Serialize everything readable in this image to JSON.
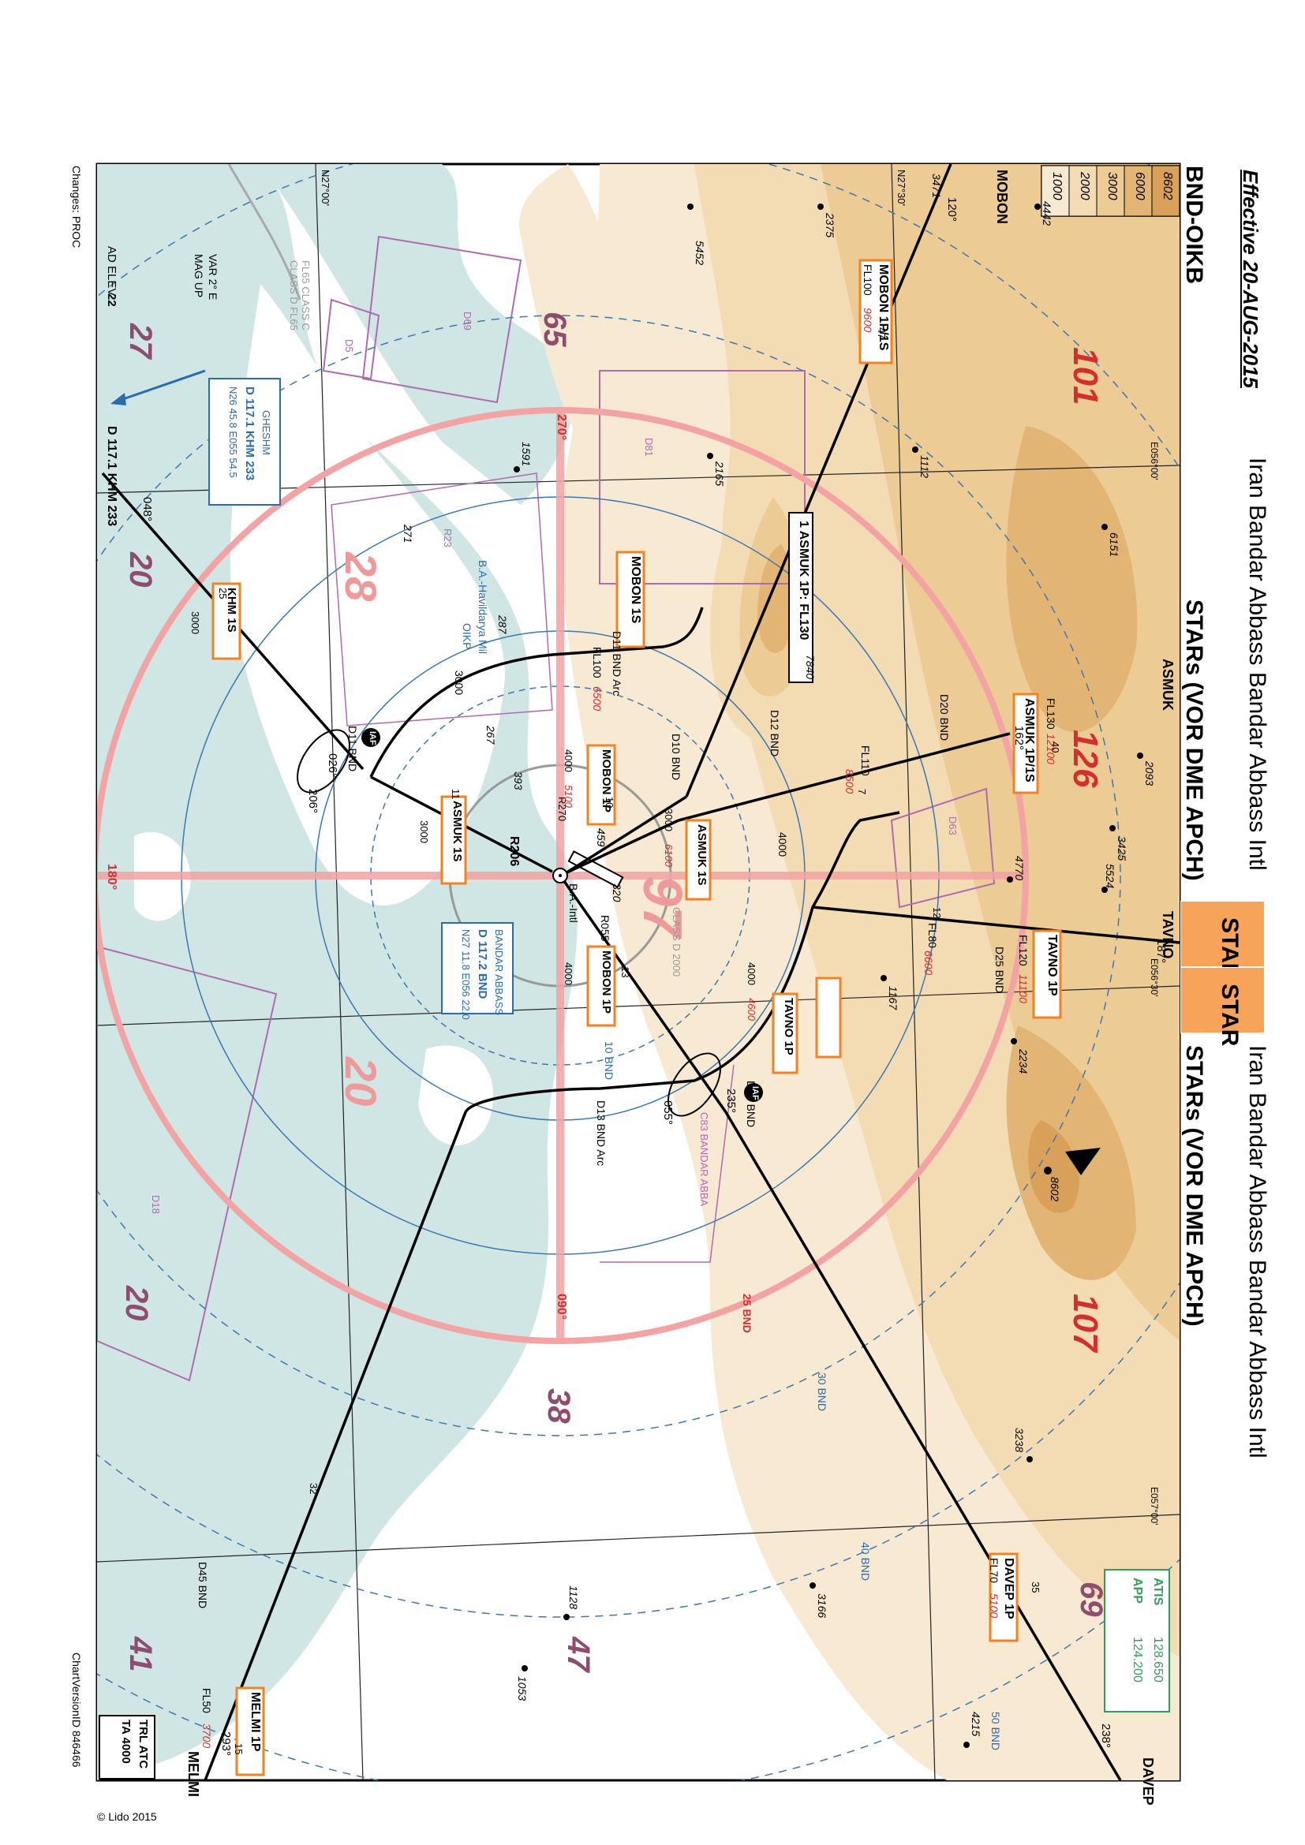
{
  "header": {
    "effective": "Effective 20-AUG-2015",
    "title_left": "Iran Bandar Abbass Bandar Abbass Intl",
    "title_right": "Iran Bandar Abbass Bandar Abbass Intl",
    "subtitle_left": "STARs (VOR DME APCH)",
    "subtitle_right": "STARs (VOR DME APCH)",
    "icao": "BND-OIKB",
    "star_tag_1": "STAR",
    "star_tag_2": "STAR"
  },
  "footer": {
    "changes": "Changes: PROC",
    "chart_version": "ChartVersionID 846466",
    "copyright": "© Lido 2015"
  },
  "legend": {
    "elevation_bands": [
      "8602",
      "6000",
      "3000",
      "2000",
      "1000"
    ],
    "colors": {
      "8602": "#d9a05a",
      "6000": "#e3b574",
      "3000": "#eccb94",
      "2000": "#f3dcb4",
      "1000": "#f8ead2"
    }
  },
  "comm": {
    "atis_label": "ATIS",
    "atis_freq": "128.650",
    "app_label": "APP",
    "app_freq": "124.200"
  },
  "transition": {
    "line1": "TRL ATC",
    "line2": "TA 4000"
  },
  "airport": {
    "elevation_label": "AD ELEV",
    "elevation_value": "22",
    "var_label": "VAR 2° E",
    "mag_up": "MAG UP",
    "name": "B.A.-Intl",
    "mil_name": "B.A.-Havildarya Mil",
    "mil_icao": "OIKP"
  },
  "navaids": {
    "vor_bnd": {
      "name": "BANDAR ABBASS",
      "freq_id": "D 117.2 BND",
      "coords": "N27 11.8 E056 22.0"
    },
    "vor_khm": {
      "name": "GHESHM",
      "freq_id": "D 117.1 KHM 233",
      "coords": "N26 45.8 E055 54.5",
      "edge_label": "D 117.1 KHM 233"
    }
  },
  "msa": [
    "101",
    "126",
    "107",
    "69",
    "47",
    "41",
    "20",
    "27",
    "65",
    "28",
    "97",
    "20",
    "38",
    "20"
  ],
  "spot_elevations": [
    "4442",
    "6151",
    "8602",
    "3238",
    "4215",
    "3166",
    "1128",
    "1053",
    "2093",
    "3425",
    "5524",
    "4770",
    "1167",
    "2234",
    "7840",
    "1112",
    "2165",
    "1591",
    "5452",
    "2375",
    "3471",
    "287",
    "271",
    "267",
    "393",
    "459",
    "320"
  ],
  "radials": [
    "270°",
    "090°",
    "180°",
    "R270",
    "R206",
    "R055"
  ],
  "rings": [
    "10 BND",
    "25 BND",
    "30 BND",
    "40 BND",
    "50 BND"
  ],
  "graticule": [
    "N27°00'",
    "N27°30'",
    "E056°00'",
    "E056°30'",
    "E057°00'"
  ],
  "airspace": [
    "D81",
    "D69",
    "D5",
    "D63",
    "D18",
    "R23",
    "C83 BANDAR ABBA",
    "CLASS D 2000",
    "FL65 CLASS C",
    "CLASS D FL65"
  ],
  "fixes": [
    "MOBON",
    "ASMUK",
    "TAVNO",
    "DAVEP",
    "MELMI"
  ],
  "procedures": [
    {
      "name": "MOBON 1P/1S",
      "detail": "FL100",
      "alt": "9600"
    },
    {
      "name": "ASMUK 1P/1S",
      "detail": "FL130",
      "alt": "12100"
    },
    {
      "name": "TAVNO 1P",
      "detail": "FL120",
      "alt": "11100"
    },
    {
      "name": "DAVEP 1P",
      "detail": "FL70",
      "alt": "5100"
    },
    {
      "name": "MELMI 1P",
      "detail": "FL50",
      "alt": "3700"
    },
    {
      "name": "MOBON 1S",
      "detail": "FL100",
      "alt": "6500"
    },
    {
      "name": "MOBON 1P",
      "detail": "4000",
      "alt": "5100"
    },
    {
      "name": "ASMUK 1S",
      "detail": "3000",
      "alt": "6100"
    },
    {
      "name": "ASMUK 1S",
      "detail": "3000",
      "alt": ""
    },
    {
      "name": "TAVNO 1P",
      "detail": "4000",
      "alt": "4600"
    },
    {
      "name": "MOBON 1P",
      "detail": "4000",
      "alt": ""
    },
    {
      "name": "KHM 1S",
      "detail": "3000",
      "alt": ""
    }
  ],
  "route_labels": [
    "D11 BND Arc",
    "D13 BND Arc",
    "D10 BND",
    "D12 BND",
    "D20 BND",
    "D25 BND",
    "D45 BND",
    "D11 BND",
    "D13 BND",
    "FL110",
    "FL80",
    "8500",
    "6600",
    "4000",
    "3000",
    "026°",
    "206°",
    "055°",
    "235°",
    "048°",
    "120°",
    "162°",
    "187°",
    "238°",
    "293°",
    "IAF",
    "1 ASMUK 1P: FL130",
    "10",
    "11",
    "12",
    "13",
    "15",
    "25",
    "32",
    "35",
    "40",
    "47",
    "7"
  ]
}
